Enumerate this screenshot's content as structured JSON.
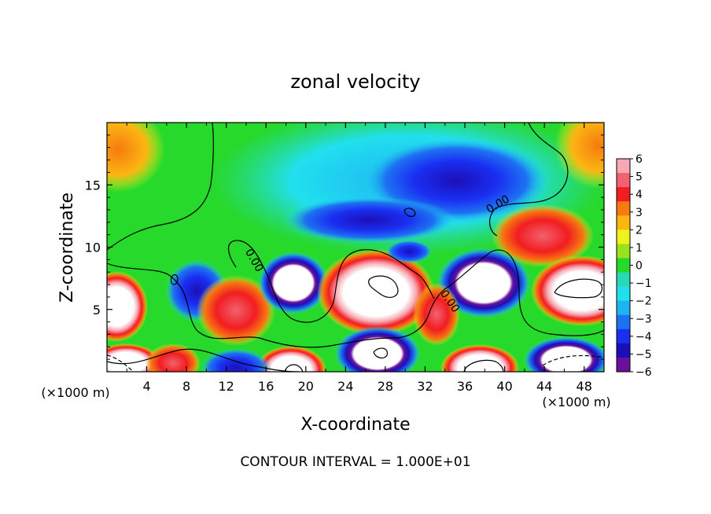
{
  "chart_data": {
    "type": "heatmap",
    "title": "zonal velocity",
    "xlabel": "X-coordinate",
    "ylabel": "Z-coordinate",
    "x_unit_left": "(×1000 m)",
    "x_unit_right": "(×1000 m)",
    "footer": "CONTOUR INTERVAL = 1.000E+01",
    "xlim": [
      0,
      50
    ],
    "ylim": [
      0,
      20
    ],
    "x_ticks": [
      4,
      8,
      12,
      16,
      20,
      24,
      28,
      32,
      36,
      40,
      44,
      48
    ],
    "y_ticks": [
      5,
      10,
      15
    ],
    "contour_labels": [
      {
        "text": "0.00",
        "x": 14.5,
        "y": 8.8
      },
      {
        "text": "0.00",
        "x": 34.2,
        "y": 5.5
      },
      {
        "text": "0.00",
        "x": 39.5,
        "y": 13.2
      }
    ],
    "colorbar": {
      "ticks": [
        "6",
        "5",
        "4",
        "3",
        "2",
        "1",
        "0",
        "−1",
        "−2",
        "−3",
        "−4",
        "−5",
        "−6"
      ],
      "colors": [
        "#f6a9b4",
        "#f2616f",
        "#f21d21",
        "#f67a10",
        "#fbb612",
        "#f0f21c",
        "#9ae21e",
        "#27d92a",
        "#28dab4",
        "#21e0ee",
        "#1eb4f2",
        "#1e72f2",
        "#1a2ff2",
        "#1c0fb8",
        "#6a119b"
      ],
      "min": -6,
      "max": 6
    }
  }
}
